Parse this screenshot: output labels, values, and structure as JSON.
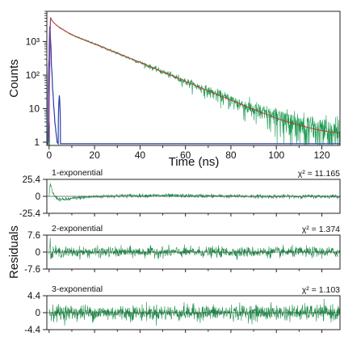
{
  "chart_data": [
    {
      "type": "line",
      "title": "",
      "xlabel": "Time (ns)",
      "ylabel": "Counts",
      "yscale": "log",
      "xlim": [
        -1,
        128
      ],
      "ylim": [
        0.8,
        8000
      ],
      "x_ticks": [
        0,
        20,
        40,
        60,
        80,
        100,
        120
      ],
      "x_tick_labels": [
        "0",
        "20",
        "40",
        "60",
        "80",
        "100",
        "120"
      ],
      "y_ticks": [
        1,
        10,
        100,
        1000
      ],
      "y_tick_labels": [
        "1",
        "10",
        "10²",
        "10³"
      ],
      "grid": false,
      "legend": "none",
      "series": [
        {
          "role": "decay",
          "color": "#1a9a50",
          "x": [
            0,
            0.5,
            1,
            1.5,
            2,
            3,
            4,
            6,
            8,
            10,
            15,
            20,
            25,
            30,
            40,
            50,
            60,
            70,
            80,
            90,
            100,
            110,
            120,
            127
          ],
          "y": [
            30,
            5200,
            4600,
            4100,
            3700,
            3200,
            2800,
            2300,
            1900,
            1600,
            1150,
            850,
            620,
            450,
            240,
            125,
            65,
            34,
            18,
            9.5,
            5.2,
            3.2,
            2.2,
            1.9
          ],
          "noise": "poisson"
        },
        {
          "role": "fit",
          "color": "#c0392b",
          "x": [
            0.5,
            1,
            1.5,
            2,
            3,
            4,
            6,
            8,
            10,
            15,
            20,
            25,
            30,
            40,
            50,
            60,
            70,
            80,
            90,
            100,
            110,
            120,
            127
          ],
          "y": [
            5200,
            4600,
            4100,
            3700,
            3200,
            2800,
            2300,
            1900,
            1600,
            1150,
            850,
            620,
            450,
            240,
            125,
            65,
            34,
            18,
            9.5,
            5.2,
            3.2,
            2.2,
            1.9
          ]
        },
        {
          "role": "irf",
          "color": "#2a3cab",
          "x": [
            -1,
            -0.5,
            0,
            0.3,
            0.6,
            1,
            1.5,
            2,
            2.5,
            3,
            3.5,
            4,
            4.5,
            5,
            5.5,
            6,
            128
          ],
          "y": [
            0.9,
            0.9,
            300,
            2800,
            1200,
            200,
            40,
            12,
            4,
            2,
            1,
            0.9,
            25,
            0.9,
            0.9,
            0.9,
            0.9
          ]
        },
        {
          "role": "rise",
          "color": "#a04080",
          "x": [
            -0.2,
            0,
            0.2,
            0.4,
            0.6,
            0.8
          ],
          "y": [
            1,
            3,
            60,
            1400,
            4200,
            5200
          ]
        }
      ]
    },
    {
      "type": "line",
      "title": "1-exponential",
      "annotation": "χ² = 11.165",
      "xlim": [
        -1,
        128
      ],
      "ylim": [
        -25.4,
        25.4
      ],
      "y_tick_labels": [
        "25.4",
        "0",
        "-25.4"
      ],
      "y_ticks": [
        25.4,
        0,
        -25.4
      ],
      "noise_sd": 1.4,
      "trend_x": [
        0,
        0.5,
        1,
        1.5,
        2.5,
        4,
        6,
        9,
        13,
        20,
        30,
        45,
        60,
        80,
        100,
        128
      ],
      "trend_y": [
        0,
        18,
        13,
        6,
        0,
        -4,
        -5,
        -4,
        -2,
        -0.5,
        0.8,
        1.2,
        0.8,
        0.2,
        -0.2,
        0
      ]
    },
    {
      "type": "line",
      "title": "2-exponential",
      "annotation": "χ² = 1.374",
      "xlim": [
        -1,
        128
      ],
      "ylim": [
        -7.6,
        7.6
      ],
      "y_tick_labels": [
        "7.6",
        "0",
        "-7.6"
      ],
      "y_ticks": [
        7.6,
        0,
        -7.6
      ],
      "noise_sd": 1.15,
      "trend_x": [
        0,
        0.5,
        1,
        1.8,
        3,
        128
      ],
      "trend_y": [
        0,
        4.5,
        -3,
        1,
        0,
        0
      ]
    },
    {
      "type": "line",
      "title": "3-exponential",
      "annotation": "χ² = 1.103",
      "xlim": [
        -1,
        128
      ],
      "ylim": [
        -4.4,
        4.4
      ],
      "y_tick_labels": [
        "4.4",
        "0",
        "-4.4"
      ],
      "y_ticks": [
        4.4,
        0,
        -4.4
      ],
      "noise_sd": 1.0,
      "trend_x": [
        0,
        128
      ],
      "trend_y": [
        0,
        0
      ]
    }
  ],
  "residuals_label": "Residuals",
  "colors": {
    "residual": "#1a8a45",
    "axis": "#222222",
    "zero_line": "#555555"
  }
}
